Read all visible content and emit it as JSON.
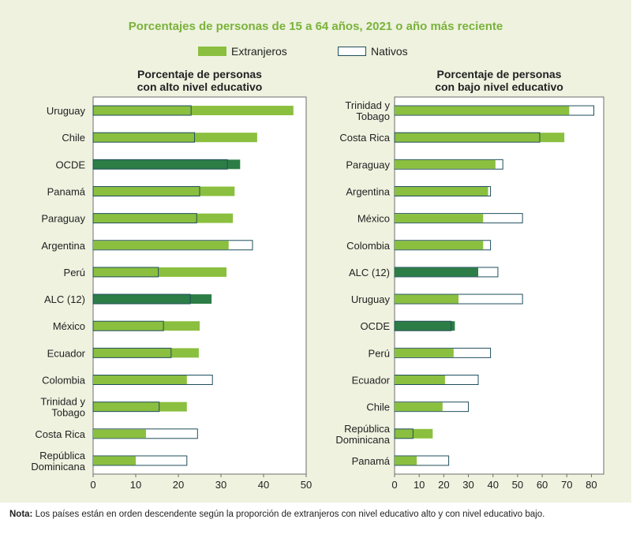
{
  "title": "Porcentajes de personas de 15 a 64 años, 2021 o año más reciente",
  "legend": {
    "foreign": "Extranjeros",
    "native": "Nativos"
  },
  "colors": {
    "foreign": "#8bbf3f",
    "highlight": "#2d7d46",
    "native_fill": "#ffffff",
    "native_border": "#1f4e5c",
    "title": "#7ab23a",
    "panel_bg": "#eef2df"
  },
  "note": {
    "label": "Nota:",
    "text": " Los países están en orden descendente según la proporción de extranjeros con nivel educativo alto y con nivel educativo bajo."
  },
  "chart_data": [
    {
      "type": "bar",
      "orientation": "horizontal",
      "title": "Porcentaje de personas con alto nivel educativo",
      "title_lines": [
        "Porcentaje de personas",
        "con alto nivel educativo"
      ],
      "xlim": [
        0,
        50
      ],
      "xticks": [
        0,
        10,
        20,
        30,
        40,
        50
      ],
      "categories": [
        "Uruguay",
        "Chile",
        "OCDE",
        "Panamá",
        "Paraguay",
        "Argentina",
        "Perú",
        "ALC (12)",
        "México",
        "Ecuador",
        "Colombia",
        "Trinidad y Tobago",
        "Costa Rica",
        "República Dominicana"
      ],
      "category_lines": [
        [
          "Uruguay"
        ],
        [
          "Chile"
        ],
        [
          "OCDE"
        ],
        [
          "Panamá"
        ],
        [
          "Paraguay"
        ],
        [
          "Argentina"
        ],
        [
          "Perú"
        ],
        [
          "ALC (12)"
        ],
        [
          "México"
        ],
        [
          "Ecuador"
        ],
        [
          "Colombia"
        ],
        [
          "Trinidad y",
          "Tobago"
        ],
        [
          "Costa Rica"
        ],
        [
          "República",
          "Dominicana"
        ]
      ],
      "highlight": [
        "OCDE",
        "ALC (12)"
      ],
      "series": [
        {
          "name": "Extranjeros",
          "values": [
            47,
            38.5,
            34.5,
            33.2,
            32.8,
            31.8,
            31.3,
            27.8,
            25,
            24.8,
            22,
            22,
            12.4,
            10
          ]
        },
        {
          "name": "Nativos",
          "values": [
            23,
            23.8,
            31.5,
            25,
            24.3,
            37.4,
            15.3,
            22.8,
            16.5,
            18.3,
            28,
            15.5,
            24.5,
            22
          ]
        }
      ]
    },
    {
      "type": "bar",
      "orientation": "horizontal",
      "title": "Porcentaje de personas con bajo nivel educativo",
      "title_lines": [
        "Porcentaje de personas",
        "con bajo nivel educativo"
      ],
      "xlim": [
        0,
        85
      ],
      "xticks": [
        0,
        10,
        20,
        30,
        40,
        50,
        60,
        70,
        80
      ],
      "categories": [
        "Trinidad y Tobago",
        "Costa Rica",
        "Paraguay",
        "Argentina",
        "México",
        "Colombia",
        "ALC (12)",
        "Uruguay",
        "OCDE",
        "Perú",
        "Ecuador",
        "Chile",
        "República Dominicana",
        "Panamá"
      ],
      "category_lines": [
        [
          "Trinidad y",
          "Tobago"
        ],
        [
          "Costa Rica"
        ],
        [
          "Paraguay"
        ],
        [
          "Argentina"
        ],
        [
          "México"
        ],
        [
          "Colombia"
        ],
        [
          "ALC (12)"
        ],
        [
          "Uruguay"
        ],
        [
          "OCDE"
        ],
        [
          "Perú"
        ],
        [
          "Ecuador"
        ],
        [
          "Chile"
        ],
        [
          "República",
          "Dominicana"
        ],
        [
          "Panamá"
        ]
      ],
      "highlight": [
        "ALC (12)",
        "OCDE"
      ],
      "series": [
        {
          "name": "Extranjeros",
          "values": [
            71,
            69,
            41,
            38,
            36,
            36,
            34,
            26,
            24.5,
            24,
            20.5,
            19.5,
            15.5,
            9
          ]
        },
        {
          "name": "Nativos",
          "values": [
            81,
            59,
            44,
            39,
            52,
            39,
            42,
            52,
            23,
            39,
            34,
            30,
            7.5,
            22
          ]
        }
      ]
    }
  ]
}
